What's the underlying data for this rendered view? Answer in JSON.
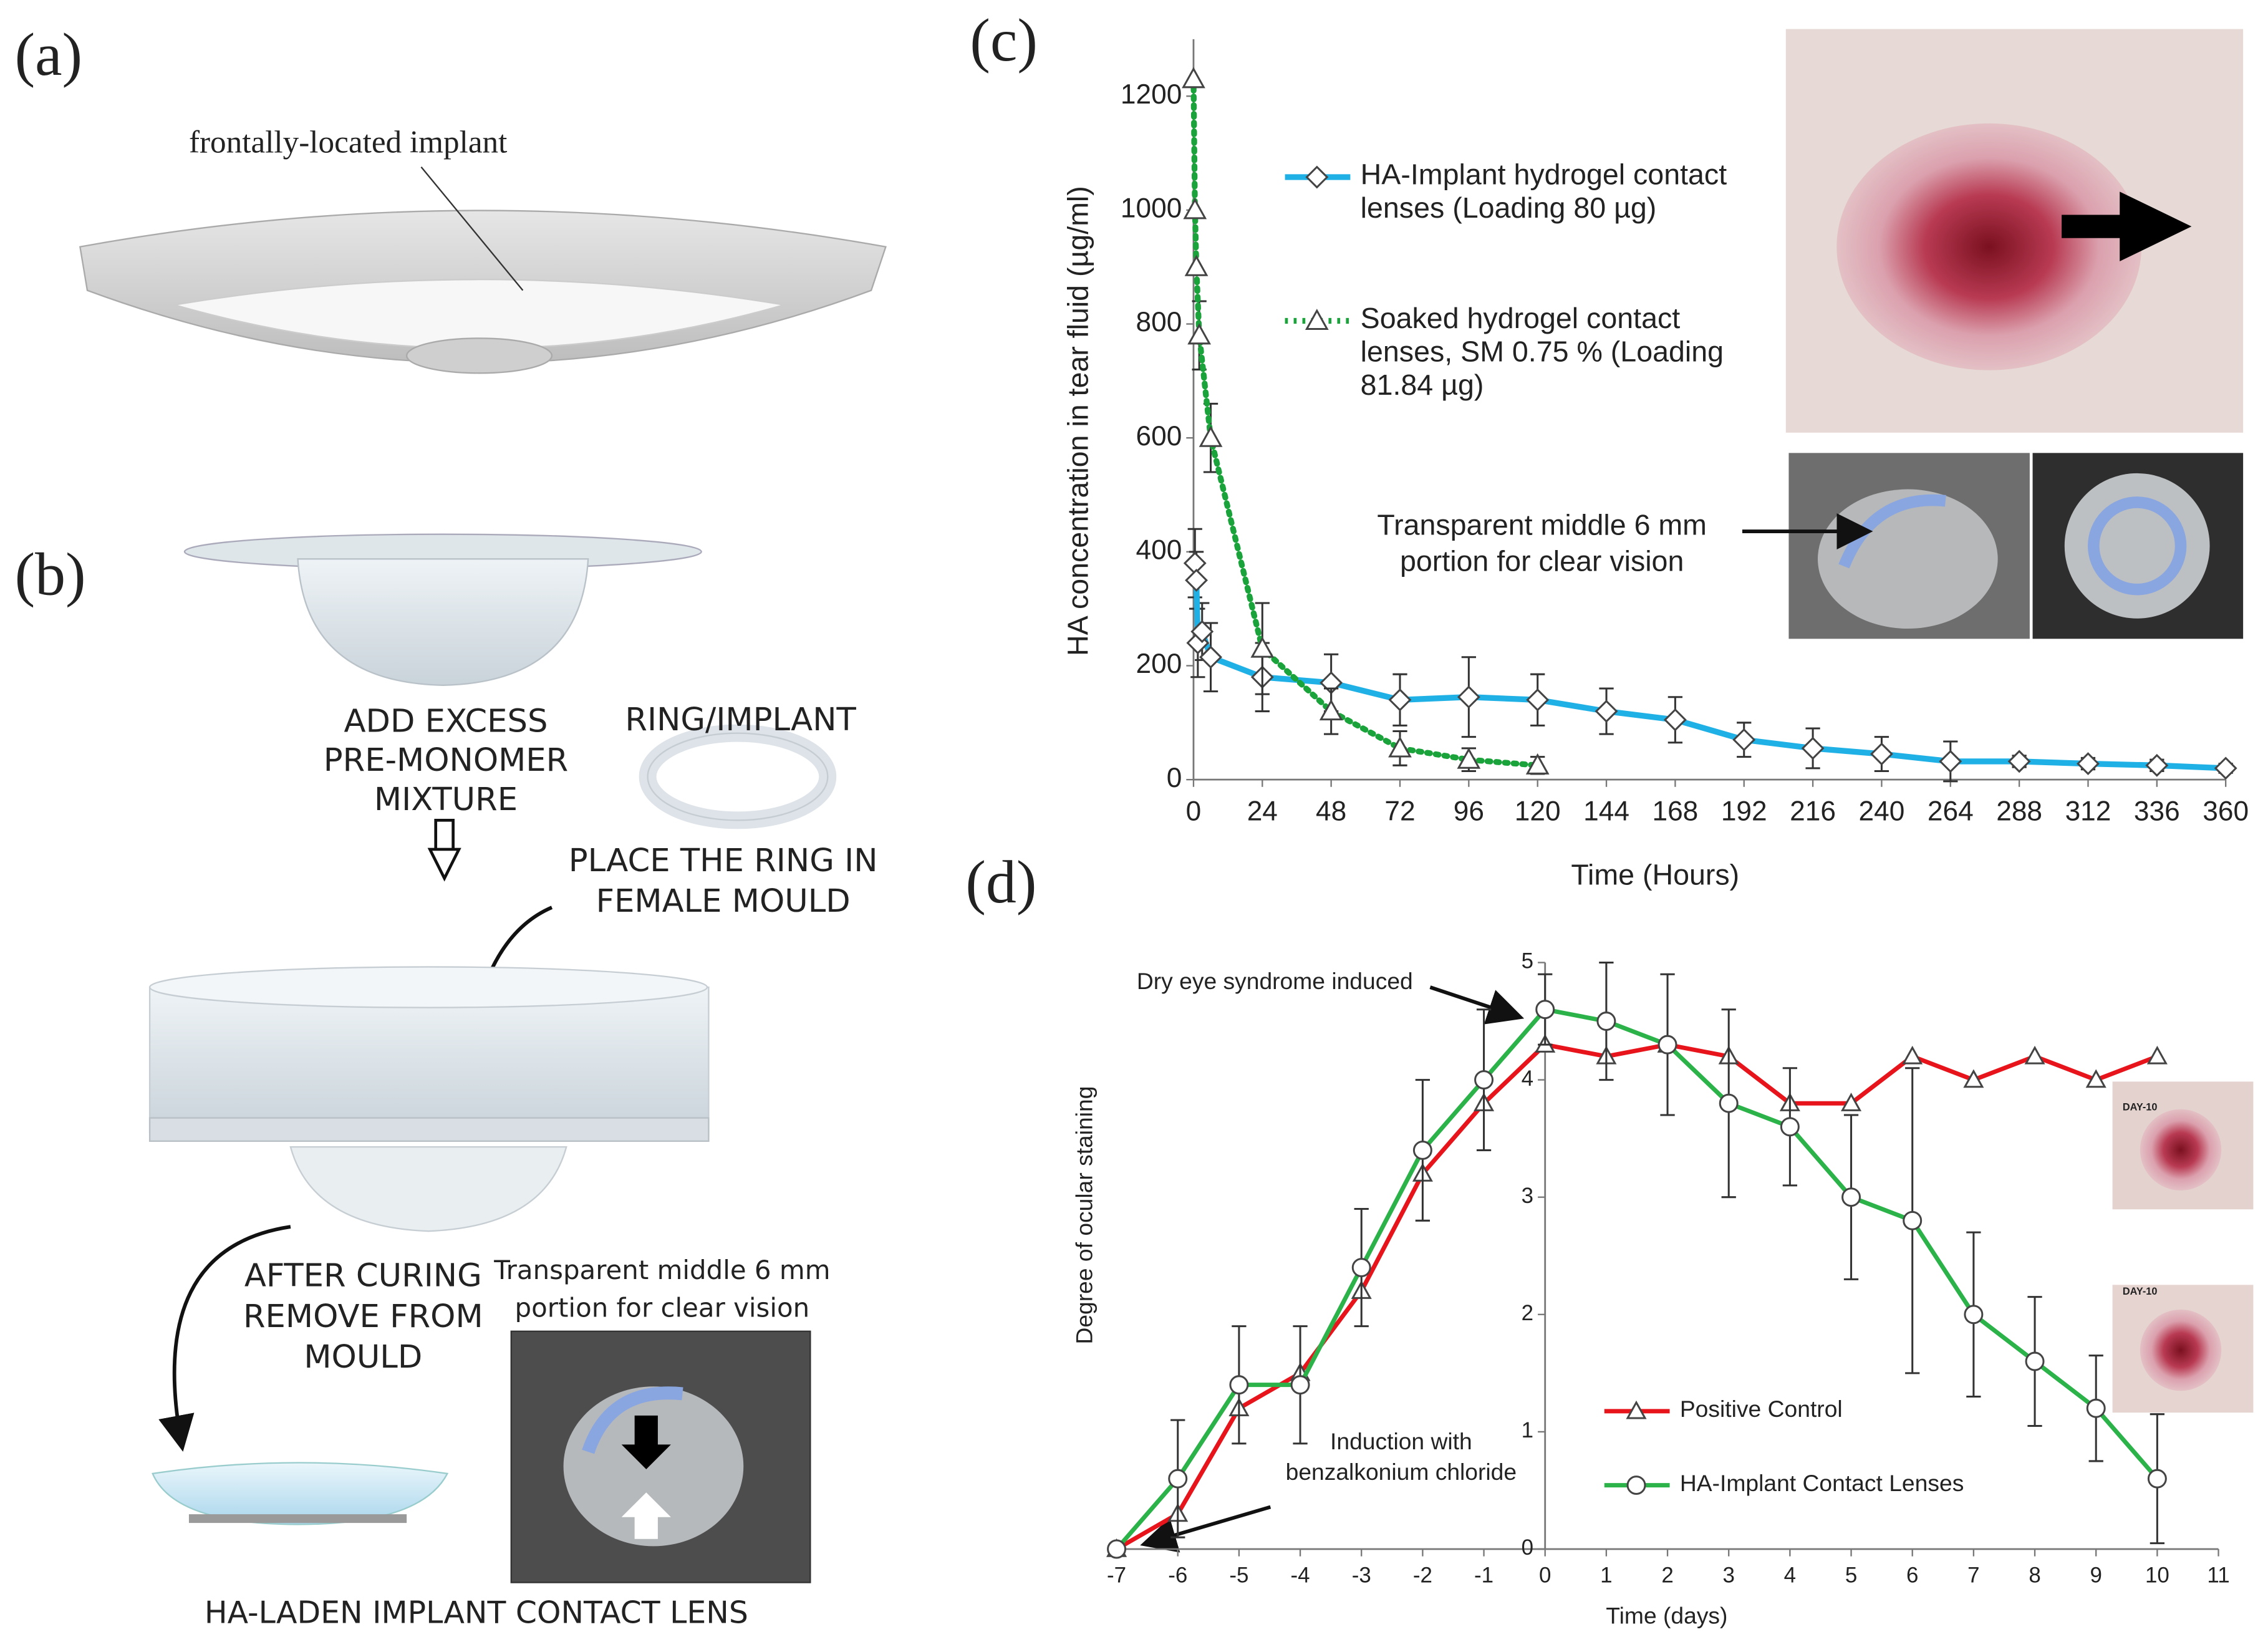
{
  "panels": {
    "a": {
      "label": "(a)",
      "annotation": "frontally-located implant"
    },
    "b": {
      "label": "(b)",
      "steps": [
        {
          "lines": [
            "ADD EXCESS",
            "PRE-MONOMER",
            "MIXTURE"
          ]
        },
        {
          "lines": [
            "RING/IMPLANT"
          ]
        },
        {
          "lines": [
            "PLACE THE RING IN",
            "FEMALE MOULD"
          ]
        },
        {
          "lines": [
            "AFTER CURING",
            "REMOVE FROM",
            "MOULD"
          ]
        }
      ],
      "photo_caption": {
        "lines": [
          "Transparent middle 6 mm",
          "portion for clear vision"
        ]
      },
      "result": "HA-LADEN IMPLANT CONTACT LENS"
    },
    "c": {
      "label": "(c)"
    },
    "d": {
      "label": "(d)"
    }
  },
  "chart_data": [
    {
      "type": "line",
      "x_label": "Time (Hours)",
      "y_label": "HA concentration in tear fluid (µg/ml)",
      "xlim": [
        0,
        360
      ],
      "xticks": [
        0,
        24,
        48,
        72,
        96,
        120,
        144,
        168,
        192,
        216,
        240,
        264,
        288,
        312,
        336,
        360
      ],
      "ylim": [
        0,
        1300
      ],
      "yticks": [
        0,
        200,
        400,
        600,
        800,
        1000,
        1200
      ],
      "series": [
        {
          "name": "HA-Implant hydrogel contact lenses (Loading 80 µg)",
          "color": "#1fb1e6",
          "line_style": "solid",
          "marker": "diamond",
          "x": [
            0.5,
            1,
            1.5,
            3,
            6,
            24,
            48,
            72,
            96,
            120,
            144,
            168,
            192,
            216,
            240,
            264,
            288,
            312,
            336,
            360
          ],
          "values": [
            380,
            350,
            240,
            260,
            215,
            180,
            170,
            140,
            145,
            140,
            120,
            105,
            70,
            55,
            45,
            32,
            32,
            28,
            25,
            20
          ],
          "errors": [
            60,
            50,
            60,
            50,
            60,
            60,
            50,
            45,
            70,
            45,
            40,
            40,
            30,
            35,
            30,
            35,
            10,
            10,
            10,
            8
          ]
        },
        {
          "name": "Soaked hydrogel contact lenses, SM 0.75 % (Loading 81.84 µg)",
          "color": "#1aa33a",
          "line_style": "dotted",
          "marker": "triangle",
          "x": [
            0,
            0.5,
            1,
            2,
            6,
            24,
            48,
            72,
            96,
            120
          ],
          "values": [
            1230,
            1000,
            900,
            780,
            600,
            230,
            120,
            55,
            35,
            25
          ],
          "errors": [
            0,
            0,
            0,
            60,
            60,
            80,
            40,
            30,
            20,
            15
          ]
        }
      ],
      "annotations": [
        {
          "lines": [
            "Transparent middle 6 mm",
            "portion for clear vision"
          ]
        }
      ]
    },
    {
      "type": "line",
      "x_label": "Time (days)",
      "y_label": "Degree of ocular staining",
      "xlim": [
        -7,
        11
      ],
      "xticks": [
        -7,
        -6,
        -5,
        -4,
        -3,
        -2,
        -1,
        0,
        1,
        2,
        3,
        4,
        5,
        6,
        7,
        8,
        9,
        10,
        11
      ],
      "ylim": [
        0,
        5
      ],
      "yticks": [
        0,
        1,
        2,
        3,
        4,
        5
      ],
      "x": [
        -7,
        -6,
        -5,
        -4,
        -3,
        -2,
        -1,
        0,
        1,
        2,
        3,
        4,
        5,
        6,
        7,
        8,
        9,
        10
      ],
      "series": [
        {
          "name": "Positive Control",
          "color": "#e8141b",
          "line_style": "solid",
          "marker": "triangle",
          "values": [
            0,
            0.3,
            1.2,
            1.5,
            2.2,
            3.2,
            3.8,
            4.3,
            4.2,
            4.3,
            4.2,
            3.8,
            3.8,
            4.2,
            4.0,
            4.2,
            4.0,
            4.2
          ]
        },
        {
          "name": "HA-Implant Contact Lenses",
          "color": "#2bb34a",
          "line_style": "solid",
          "marker": "circle",
          "values": [
            0,
            0.6,
            1.4,
            1.4,
            2.4,
            3.4,
            4.0,
            4.6,
            4.5,
            4.3,
            3.8,
            3.6,
            3.0,
            2.8,
            2.0,
            1.6,
            1.2,
            0.6
          ],
          "errors": [
            0,
            0.5,
            0.5,
            0.5,
            0.5,
            0.6,
            0.6,
            0.3,
            0.5,
            0.6,
            0.8,
            0.5,
            0.7,
            1.3,
            0.7,
            0.55,
            0.45,
            0.55
          ]
        }
      ],
      "annotations": [
        {
          "lines": [
            "Dry eye syndrome induced"
          ]
        },
        {
          "lines": [
            "Induction with",
            "benzalkonium chloride"
          ]
        },
        {
          "lines": [
            "DAY-10"
          ]
        },
        {
          "lines": [
            "DAY-10"
          ]
        }
      ]
    }
  ]
}
